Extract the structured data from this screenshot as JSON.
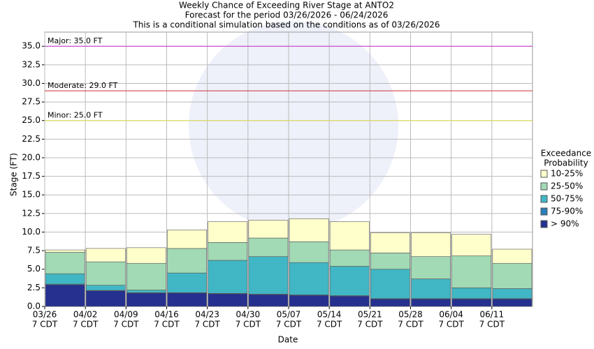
{
  "chart_data": {
    "type": "stacked-bar",
    "title": [
      "Weekly Chance of Exceeding River Stage at ANTO2",
      "Forecast for the period 03/26/2026 - 06/24/2026",
      "This is a conditional simulation based on the conditions as of 03/26/2026"
    ],
    "y_label": "Stage (FT)",
    "x_label": "Date",
    "categories": [
      "03/26",
      "04/02",
      "04/09",
      "04/16",
      "04/23",
      "04/30",
      "05/07",
      "05/14",
      "05/21",
      "05/28",
      "06/04",
      "06/11"
    ],
    "category_sublabels": [
      "7 CDT",
      "7 CDT",
      "7 CDT",
      "7 CDT",
      "7 CDT",
      "7 CDT",
      "7 CDT",
      "7 CDT",
      "7 CDT",
      "7 CDT",
      "7 CDT",
      "7 CDT"
    ],
    "legend_title": [
      "Exceedance",
      "Probability"
    ],
    "series": [
      {
        "name": "> 90%",
        "color": "#26308f",
        "values": [
          2.9,
          2.1,
          1.8,
          1.8,
          1.7,
          1.6,
          1.5,
          1.4,
          1.0,
          1.0,
          1.0,
          1.0
        ]
      },
      {
        "name": "75-90%",
        "color": "#2c7fb8",
        "values": [
          0.1,
          0.05,
          0.05,
          0.05,
          0.05,
          0.05,
          0.05,
          0.05,
          0.05,
          0.05,
          0.05,
          0.05
        ]
      },
      {
        "name": "50-75%",
        "color": "#41b6c4",
        "values": [
          1.4,
          0.7,
          0.35,
          2.65,
          4.45,
          5.05,
          4.35,
          3.95,
          3.95,
          2.65,
          1.45,
          1.35
        ]
      },
      {
        "name": "25-50%",
        "color": "#a1dab4",
        "values": [
          2.9,
          3.15,
          3.6,
          3.3,
          2.4,
          2.5,
          2.8,
          2.2,
          2.2,
          3.0,
          4.3,
          3.4
        ]
      },
      {
        "name": "10-25%",
        "color": "#ffffcc",
        "values": [
          0.3,
          1.8,
          2.1,
          2.5,
          2.8,
          2.4,
          3.1,
          3.8,
          2.7,
          3.2,
          2.9,
          1.9
        ]
      }
    ],
    "thresholds": [
      {
        "label": "Major: 35.0 FT",
        "value": 35,
        "color": "#cc33cc"
      },
      {
        "label": "Moderate: 29.0 FT",
        "value": 29,
        "color": "#cc3333"
      },
      {
        "label": "Minor: 25.0 FT",
        "value": 25,
        "color": "#dddd44"
      }
    ],
    "ylim": [
      0,
      36.9
    ],
    "yticks": [
      {
        "value": 0,
        "label": "0.0"
      },
      2.5,
      {
        "value": 5,
        "label": "5.0"
      },
      7.5,
      {
        "value": 10,
        "label": "10.0"
      },
      12.5,
      {
        "value": 15,
        "label": "15.0"
      },
      17.5,
      {
        "value": 20,
        "label": "20.0"
      },
      22.5,
      {
        "value": 25,
        "label": "25.0"
      },
      27.5,
      {
        "value": 30,
        "label": "30.0"
      },
      32.5,
      {
        "value": 35,
        "label": "35.0"
      }
    ],
    "grid": true
  }
}
